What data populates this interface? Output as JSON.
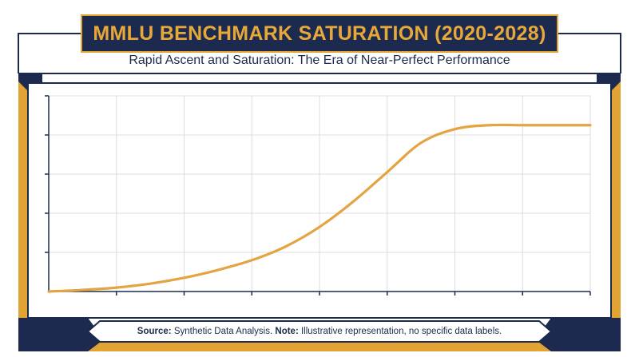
{
  "header": {
    "title": "MMLU BENCHMARK SATURATION (2020-2028)",
    "subtitle": "Rapid Ascent and Saturation: The Era of Near-Perfect Performance"
  },
  "footer": {
    "source_label": "Source:",
    "source_text": "Synthetic Data Analysis.",
    "note_label": "Note:",
    "note_text": "Illustrative representation, no specific data labels."
  },
  "colors": {
    "navy": "#1b2a4e",
    "gold": "#e1a332",
    "curve": "#e3a441",
    "grid": "#dcdcdc"
  },
  "chart_data": {
    "type": "line",
    "title": "MMLU BENCHMARK SATURATION (2020-2028)",
    "subtitle": "Rapid Ascent and Saturation: The Era of Near-Perfect Performance",
    "xlabel": "",
    "ylabel": "",
    "xlim": [
      2020,
      2028
    ],
    "ylim": [
      0,
      100
    ],
    "grid": true,
    "legend": "none",
    "series": [
      {
        "x": [
          2020,
          2020.5,
          2021,
          2021.5,
          2022,
          2022.5,
          2023,
          2023.5,
          2024,
          2024.5,
          2025,
          2025.5,
          2026,
          2026.5,
          2027,
          2027.5,
          2028
        ],
        "values": [
          0,
          0.8,
          2,
          4,
          7,
          11,
          16,
          23,
          33,
          46,
          61,
          76,
          83,
          85,
          85,
          85,
          85
        ]
      }
    ]
  }
}
